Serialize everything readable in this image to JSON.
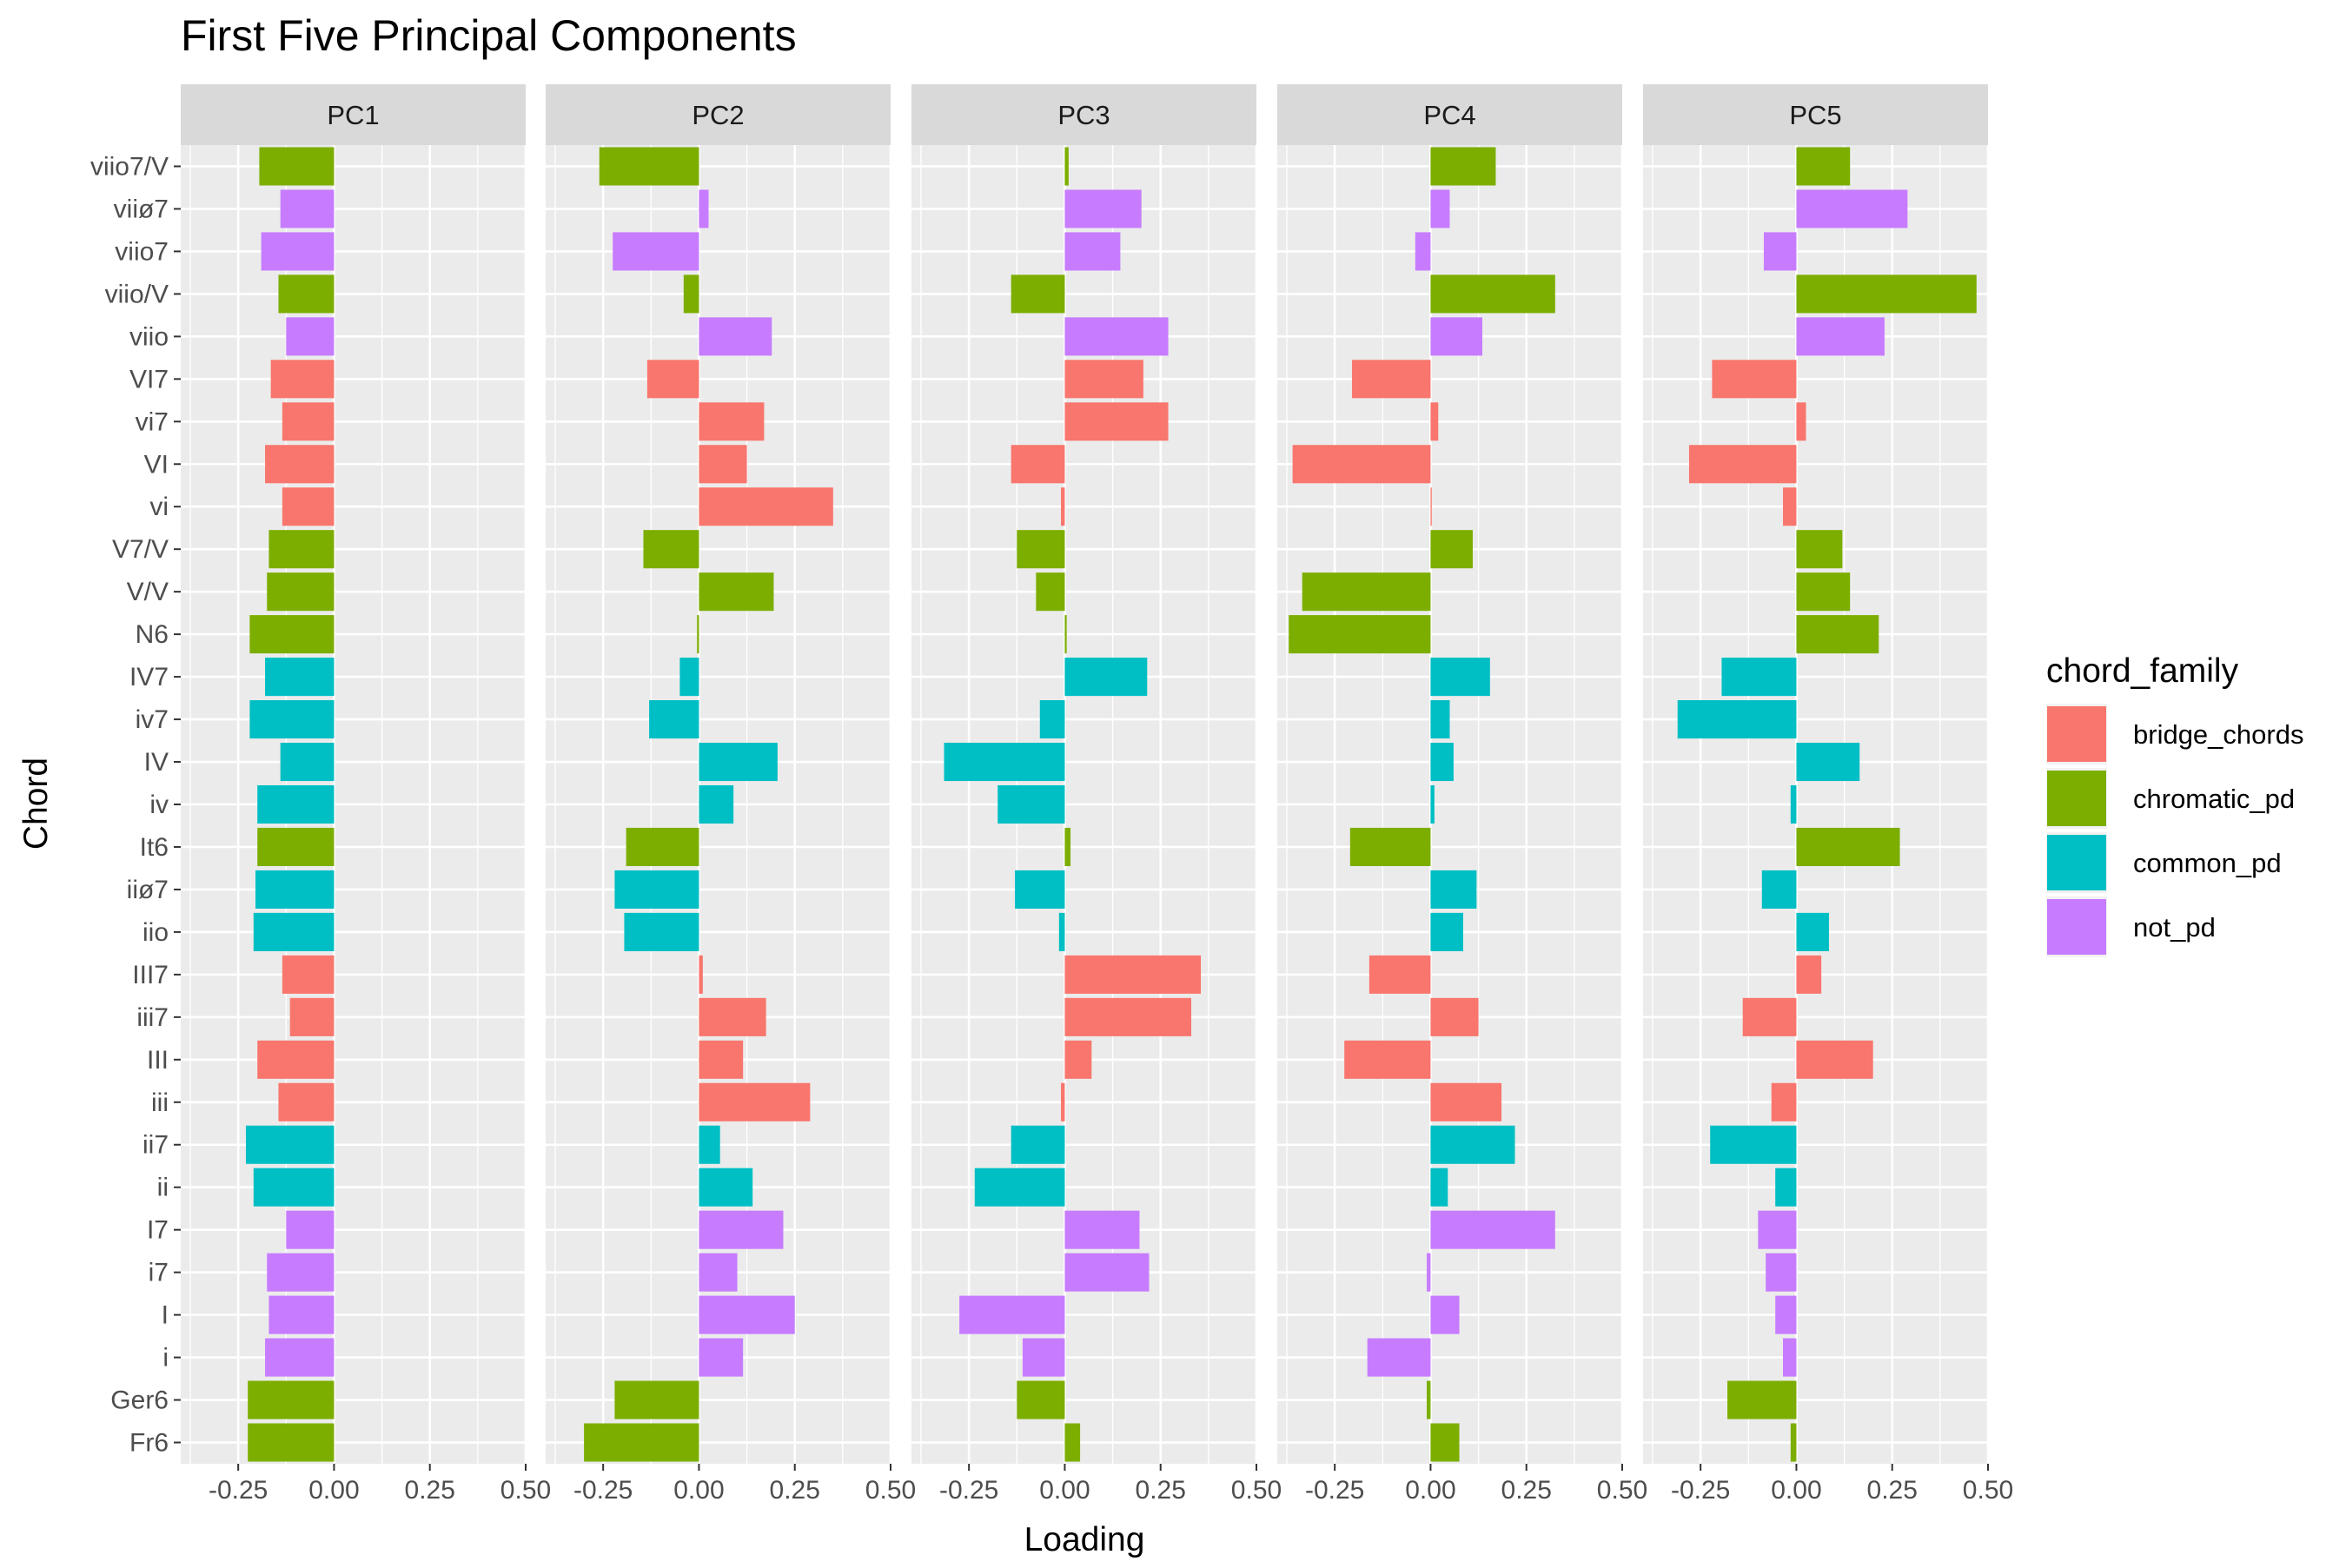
{
  "chart_data": {
    "type": "bar",
    "orientation": "horizontal",
    "title": "First Five Principal Components",
    "xlabel": "Loading",
    "ylabel": "Chord",
    "xlim": [
      -0.4,
      0.5
    ],
    "x_ticks": [
      -0.25,
      0.0,
      0.25,
      0.5
    ],
    "x_tick_labels": [
      "-0.25",
      "0.00",
      "0.25",
      "0.50"
    ],
    "grid": true,
    "legend_position": "right",
    "legend": {
      "title": "chord_family",
      "entries": [
        {
          "key": "bridge_chords",
          "label": "bridge_chords",
          "color": "#F8766D"
        },
        {
          "key": "chromatic_pd",
          "label": "chromatic_pd",
          "color": "#7CAE00"
        },
        {
          "key": "common_pd",
          "label": "common_pd",
          "color": "#00BFC4"
        },
        {
          "key": "not_pd",
          "label": "not_pd",
          "color": "#C77CFF"
        }
      ]
    },
    "categories": [
      "viio7/V",
      "viiø7",
      "viio7",
      "viio/V",
      "viio",
      "VI7",
      "vi7",
      "VI",
      "vi",
      "V7/V",
      "V/V",
      "N6",
      "IV7",
      "iv7",
      "IV",
      "iv",
      "It6",
      "iiø7",
      "iio",
      "III7",
      "iii7",
      "III",
      "iii",
      "ii7",
      "ii",
      "I7",
      "i7",
      "I",
      "i",
      "Ger6",
      "Fr6"
    ],
    "families": [
      "chromatic_pd",
      "not_pd",
      "not_pd",
      "chromatic_pd",
      "not_pd",
      "bridge_chords",
      "bridge_chords",
      "bridge_chords",
      "bridge_chords",
      "chromatic_pd",
      "chromatic_pd",
      "chromatic_pd",
      "common_pd",
      "common_pd",
      "common_pd",
      "common_pd",
      "chromatic_pd",
      "common_pd",
      "common_pd",
      "bridge_chords",
      "bridge_chords",
      "bridge_chords",
      "bridge_chords",
      "common_pd",
      "common_pd",
      "not_pd",
      "not_pd",
      "not_pd",
      "not_pd",
      "chromatic_pd",
      "chromatic_pd"
    ],
    "panels": [
      {
        "name": "PC1",
        "values": [
          -0.195,
          -0.14,
          -0.19,
          -0.145,
          -0.125,
          -0.165,
          -0.135,
          -0.18,
          -0.135,
          -0.17,
          -0.175,
          -0.22,
          -0.18,
          -0.22,
          -0.14,
          -0.2,
          -0.2,
          -0.205,
          -0.21,
          -0.135,
          -0.115,
          -0.2,
          -0.145,
          -0.23,
          -0.21,
          -0.125,
          -0.175,
          -0.17,
          -0.18,
          -0.225,
          -0.225
        ]
      },
      {
        "name": "PC2",
        "values": [
          -0.26,
          0.025,
          -0.225,
          -0.04,
          0.19,
          -0.135,
          0.17,
          0.125,
          0.35,
          -0.145,
          0.195,
          -0.005,
          -0.05,
          -0.13,
          0.205,
          0.09,
          -0.19,
          -0.22,
          -0.195,
          0.01,
          0.175,
          0.115,
          0.29,
          0.055,
          0.14,
          0.22,
          0.1,
          0.25,
          0.115,
          -0.22,
          -0.3
        ]
      },
      {
        "name": "PC3",
        "values": [
          0.01,
          0.2,
          0.145,
          -0.14,
          0.27,
          0.205,
          0.27,
          -0.14,
          -0.01,
          -0.125,
          -0.075,
          0.005,
          0.215,
          -0.065,
          -0.315,
          -0.175,
          0.015,
          -0.13,
          -0.015,
          0.355,
          0.33,
          0.07,
          -0.01,
          -0.14,
          -0.235,
          0.195,
          0.22,
          -0.275,
          -0.11,
          -0.125,
          0.04
        ]
      },
      {
        "name": "PC4",
        "values": [
          0.17,
          0.05,
          -0.04,
          0.325,
          0.135,
          -0.205,
          0.02,
          -0.36,
          0.003,
          0.11,
          -0.335,
          -0.37,
          0.155,
          0.05,
          0.06,
          0.01,
          -0.21,
          0.12,
          0.085,
          -0.16,
          0.125,
          -0.225,
          0.185,
          0.22,
          0.045,
          0.325,
          -0.01,
          0.075,
          -0.165,
          -0.01,
          0.075
        ]
      },
      {
        "name": "PC5",
        "values": [
          0.14,
          0.29,
          -0.085,
          0.47,
          0.23,
          -0.22,
          0.025,
          -0.28,
          -0.035,
          0.12,
          0.14,
          0.215,
          -0.195,
          -0.31,
          0.165,
          -0.015,
          0.27,
          -0.09,
          0.085,
          0.065,
          -0.14,
          0.2,
          -0.065,
          -0.225,
          -0.055,
          -0.1,
          -0.08,
          -0.055,
          -0.035,
          -0.18,
          -0.015
        ]
      }
    ]
  }
}
